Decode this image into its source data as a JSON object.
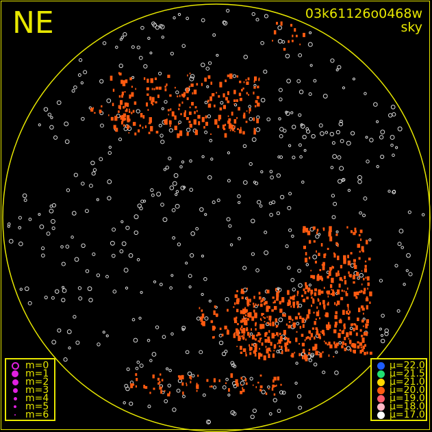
{
  "direction_label": "NE",
  "title": {
    "frame_id": "03k61126o0468w",
    "mode": "sky"
  },
  "colors": {
    "frame": "#e8e800",
    "horizon": "#e8e800",
    "magnitude_symbol": "#e020e0",
    "background": "#000000"
  },
  "magnitude_legend": [
    {
      "label": "m=0",
      "size": 11,
      "hollow": true
    },
    {
      "label": "m=1",
      "size": 10
    },
    {
      "label": "m=2",
      "size": 9
    },
    {
      "label": "m=3",
      "size": 7
    },
    {
      "label": "m=4",
      "size": 5
    },
    {
      "label": "m=5",
      "size": 4
    },
    {
      "label": "m=6",
      "size": 2
    }
  ],
  "brightness_legend": [
    {
      "label": "μ=22.0",
      "color": "#1e5cff"
    },
    {
      "label": "μ=21.5",
      "color": "#20e070"
    },
    {
      "label": "μ=21.0",
      "color": "#ffd800"
    },
    {
      "label": "μ=20.0",
      "color": "#ff5a10"
    },
    {
      "label": "μ=19.0",
      "color": "#ff5c6c"
    },
    {
      "label": "μ=18.0",
      "color": "#ffb8c8"
    },
    {
      "label": "μ=17.0",
      "color": "#ffffff"
    }
  ]
}
